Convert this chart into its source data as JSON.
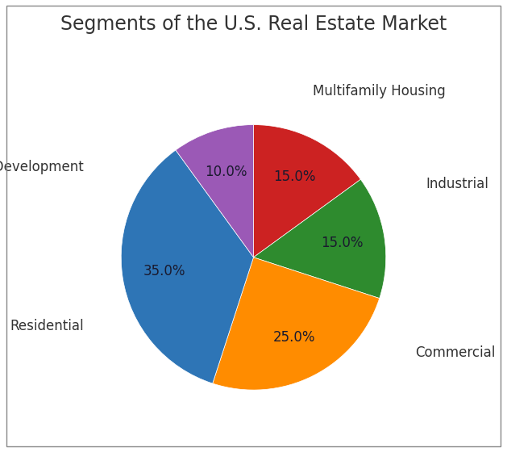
{
  "title": "Segments of the U.S. Real Estate Market",
  "segments": [
    {
      "label": "Multifamily Housing",
      "value": 15.0,
      "color": "#cc2222"
    },
    {
      "label": "Industrial",
      "value": 15.0,
      "color": "#2e8b2e"
    },
    {
      "label": "Commercial",
      "value": 25.0,
      "color": "#ff8c00"
    },
    {
      "label": "Residential",
      "value": 35.0,
      "color": "#2e75b6"
    },
    {
      "label": "Land & Development",
      "value": 10.0,
      "color": "#9b59b6"
    }
  ],
  "startangle": 90,
  "title_fontsize": 17,
  "label_fontsize": 12,
  "pct_fontsize": 12,
  "pct_color": "#1a1a2e",
  "label_color": "#333333",
  "bg_color": "#ffffff",
  "border_color": "#888888",
  "figsize": [
    6.29,
    5.6
  ],
  "dpi": 100
}
